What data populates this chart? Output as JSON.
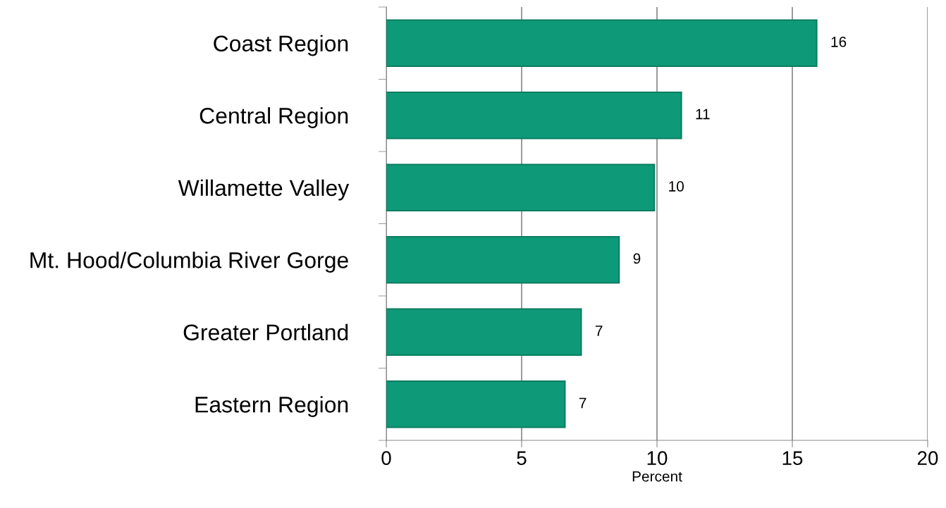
{
  "chart_data": {
    "type": "bar",
    "orientation": "horizontal",
    "xlabel": "Percent",
    "categories": [
      "Coast Region",
      "Central Region",
      "Willamette Valley",
      "Mt. Hood/Columbia River Gorge",
      "Greater Portland",
      "Eastern Region"
    ],
    "values": [
      15.9,
      10.9,
      9.9,
      8.6,
      7.2,
      6.6
    ],
    "value_labels": [
      "16",
      "11",
      "10",
      "9",
      "7",
      "7"
    ],
    "color": "#0e9a78",
    "xlim": [
      0,
      20
    ],
    "xticks": [
      0,
      5,
      10,
      15,
      20
    ],
    "grid": "x"
  }
}
